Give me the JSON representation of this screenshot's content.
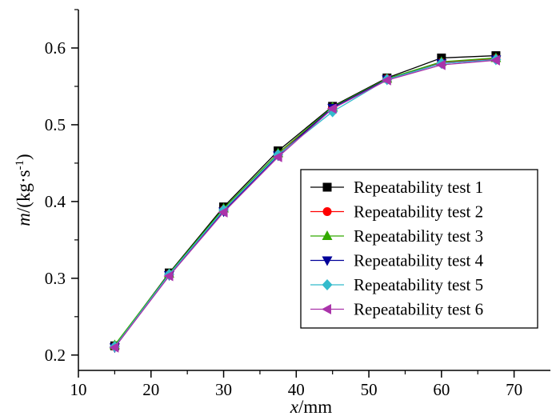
{
  "chart_data": {
    "type": "line",
    "title": "",
    "xlabel": {
      "var": "x",
      "unit": "/mm"
    },
    "ylabel": {
      "var": "m",
      "unit": "/(kg·s",
      "sup": "-1",
      "close": ")"
    },
    "xlim": [
      10,
      75
    ],
    "ylim": [
      0.18,
      0.65
    ],
    "xticks": [
      10,
      20,
      30,
      40,
      50,
      60,
      70
    ],
    "yticks": [
      0.2,
      0.3,
      0.4,
      0.5,
      0.6
    ],
    "xtick_labels": [
      "10",
      "20",
      "30",
      "40",
      "50",
      "60",
      "70"
    ],
    "ytick_labels": [
      "0.2",
      "0.3",
      "0.4",
      "0.5",
      "0.6"
    ],
    "x": [
      15,
      22.5,
      30,
      37.5,
      45,
      52.5,
      60,
      67.5
    ],
    "legend_position": "middle-right",
    "series": [
      {
        "name": "Repeatability test 1",
        "color": "#000000",
        "marker": "square",
        "values": [
          0.212,
          0.307,
          0.393,
          0.466,
          0.524,
          0.561,
          0.587,
          0.59
        ]
      },
      {
        "name": "Repeatability test 2",
        "color": "#ff0000",
        "marker": "circle",
        "values": [
          0.211,
          0.305,
          0.389,
          0.461,
          0.522,
          0.56,
          0.581,
          0.586
        ]
      },
      {
        "name": "Repeatability test 3",
        "color": "#33aa00",
        "marker": "triangle-up",
        "values": [
          0.213,
          0.306,
          0.391,
          0.463,
          0.523,
          0.56,
          0.582,
          0.587
        ]
      },
      {
        "name": "Repeatability test 4",
        "color": "#000099",
        "marker": "triangle-down",
        "values": [
          0.21,
          0.304,
          0.387,
          0.46,
          0.522,
          0.559,
          0.58,
          0.585
        ]
      },
      {
        "name": "Repeatability test 5",
        "color": "#33bbcc",
        "marker": "diamond",
        "values": [
          0.211,
          0.305,
          0.389,
          0.461,
          0.517,
          0.559,
          0.58,
          0.585
        ]
      },
      {
        "name": "Repeatability test 6",
        "color": "#aa33aa",
        "marker": "triangle-left",
        "values": [
          0.21,
          0.303,
          0.386,
          0.458,
          0.521,
          0.558,
          0.578,
          0.584
        ]
      }
    ]
  }
}
